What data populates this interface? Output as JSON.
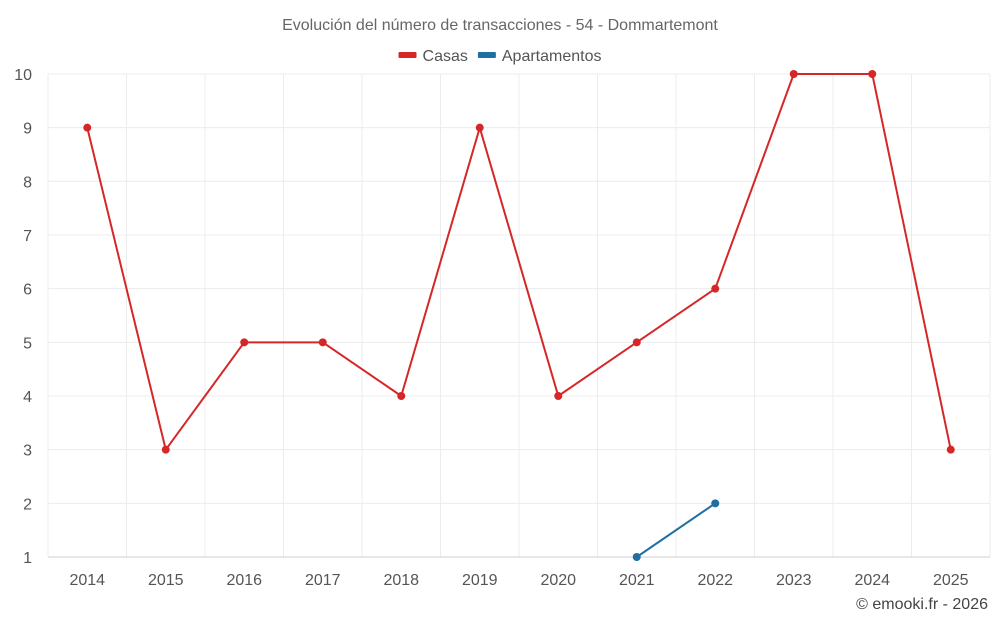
{
  "chart_data": {
    "type": "line",
    "title": "Evolución del número de transacciones - 54 - Dommartemont",
    "categories": [
      "2014",
      "2015",
      "2016",
      "2017",
      "2018",
      "2019",
      "2020",
      "2021",
      "2022",
      "2023",
      "2024",
      "2025"
    ],
    "series": [
      {
        "name": "Casas",
        "color": "#d62728",
        "values": [
          9,
          3,
          5,
          5,
          4,
          9,
          4,
          5,
          6,
          10,
          10,
          3
        ]
      },
      {
        "name": "Apartamentos",
        "color": "#1f6fa3",
        "values": [
          null,
          null,
          null,
          null,
          null,
          null,
          null,
          1,
          2,
          null,
          null,
          null
        ]
      }
    ],
    "ylim": [
      1,
      10
    ],
    "yticks": [
      "1",
      "2",
      "3",
      "4",
      "5",
      "6",
      "7",
      "8",
      "9",
      "10"
    ],
    "grid": true,
    "legend": "top-center",
    "xlabel": "",
    "ylabel": ""
  },
  "credit": "© emooki.fr - 2026"
}
